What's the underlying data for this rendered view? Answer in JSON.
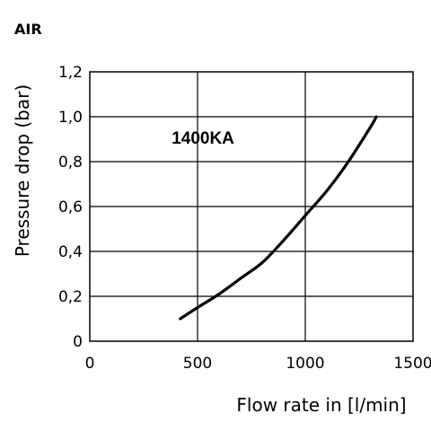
{
  "chart_data": {
    "type": "line",
    "title": "AIR",
    "xlabel": "Flow rate in [l/min]",
    "ylabel": "Pressure drop (bar)",
    "xlim": [
      0,
      1500
    ],
    "ylim": [
      0,
      1.2
    ],
    "x_ticks": [
      {
        "value": 0,
        "label": "0"
      },
      {
        "value": 500,
        "label": "500"
      },
      {
        "value": 1000,
        "label": "1000"
      },
      {
        "value": 1500,
        "label": "1500"
      }
    ],
    "y_ticks": [
      {
        "value": 0,
        "label": "0"
      },
      {
        "value": 0.2,
        "label": "0,2"
      },
      {
        "value": 0.4,
        "label": "0,4"
      },
      {
        "value": 0.6,
        "label": "0,6"
      },
      {
        "value": 0.8,
        "label": "0,8"
      },
      {
        "value": 1.0,
        "label": "1,0"
      },
      {
        "value": 1.2,
        "label": "1,2"
      }
    ],
    "grid": true,
    "series": [
      {
        "name": "1400KA",
        "label_position": {
          "x": 380,
          "y": 0.88
        },
        "x": [
          420,
          500,
          600,
          700,
          800,
          900,
          1000,
          1100,
          1200,
          1300,
          1330
        ],
        "y": [
          0.1,
          0.15,
          0.21,
          0.28,
          0.35,
          0.45,
          0.56,
          0.67,
          0.8,
          0.95,
          1.0
        ]
      }
    ]
  }
}
